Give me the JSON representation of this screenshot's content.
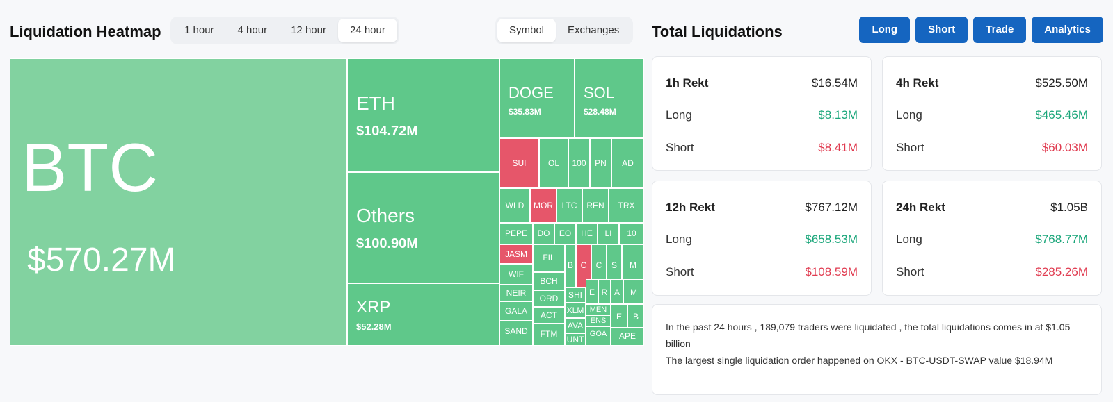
{
  "heatmap": {
    "title": "Liquidation Heatmap",
    "time_tabs": [
      "1 hour",
      "4 hour",
      "12 hour",
      "24 hour"
    ],
    "active_time_tab": "24 hour",
    "view_tabs": [
      "Symbol",
      "Exchanges"
    ],
    "active_view_tab": "Symbol",
    "tiles": {
      "btc": {
        "symbol": "BTC",
        "value": "$570.27M"
      },
      "eth": {
        "symbol": "ETH",
        "value": "$104.72M"
      },
      "others": {
        "symbol": "Others",
        "value": "$100.90M"
      },
      "xrp": {
        "symbol": "XRP",
        "value": "$52.28M"
      },
      "doge": {
        "symbol": "DOGE",
        "value": "$35.83M"
      },
      "sol": {
        "symbol": "SOL",
        "value": "$28.48M"
      }
    },
    "small_tiles": {
      "sui": "SUI",
      "ol": "OL",
      "c100": "100",
      "pn": "PN",
      "ad": "AD",
      "wld": "WLD",
      "mor": "MOR",
      "ltc": "LTC",
      "ren": "REN",
      "trx": "TRX",
      "pepe": "PEPE",
      "do": "DO",
      "eo": "EO",
      "he": "HE",
      "li": "LI",
      "c10": "10",
      "jasm": "JASM",
      "fil": "FIL",
      "b1": "B",
      "c1": "C",
      "c2": "C",
      "s1": "S",
      "m1": "M",
      "wif": "WIF",
      "bch": "BCH",
      "neir": "NEIR",
      "shi": "SHI",
      "e1": "E",
      "r1": "R",
      "a1": "A",
      "m2": "M",
      "gala": "GALA",
      "ord": "ORD",
      "xlm": "XLM",
      "act": "ACT",
      "ava": "AVA",
      "men": "MEN",
      "ens": "ENS",
      "e2": "E",
      "b2": "B",
      "sand": "SAND",
      "ftm": "FTM",
      "unt": "UNT",
      "goa": "GOA",
      "ape": "APE"
    }
  },
  "total": {
    "title": "Total Liquidations",
    "buttons": [
      "Long",
      "Short",
      "Trade",
      "Analytics"
    ],
    "cards": [
      {
        "title": "1h Rekt",
        "total": "$16.54M",
        "long_label": "Long",
        "long": "$8.13M",
        "short_label": "Short",
        "short": "$8.41M"
      },
      {
        "title": "4h Rekt",
        "total": "$525.50M",
        "long_label": "Long",
        "long": "$465.46M",
        "short_label": "Short",
        "short": "$60.03M"
      },
      {
        "title": "12h Rekt",
        "total": "$767.12M",
        "long_label": "Long",
        "long": "$658.53M",
        "short_label": "Short",
        "short": "$108.59M"
      },
      {
        "title": "24h Rekt",
        "total": "$1.05B",
        "long_label": "Long",
        "long": "$768.77M",
        "short_label": "Short",
        "short": "$285.26M"
      }
    ],
    "summary_line1": "In the past 24 hours , 189,079 traders were liquidated , the total liquidations comes in at $1.05 billion",
    "summary_line2": "The largest single liquidation order happened on OKX - BTC-USDT-SWAP value $18.94M"
  },
  "colors": {
    "tile_green": "#5fc88a",
    "tile_light_green": "#82d2a0",
    "tile_red": "#e6566a",
    "button_blue": "#1565c0",
    "positive": "#1aa67a",
    "negative": "#e03a4f"
  }
}
